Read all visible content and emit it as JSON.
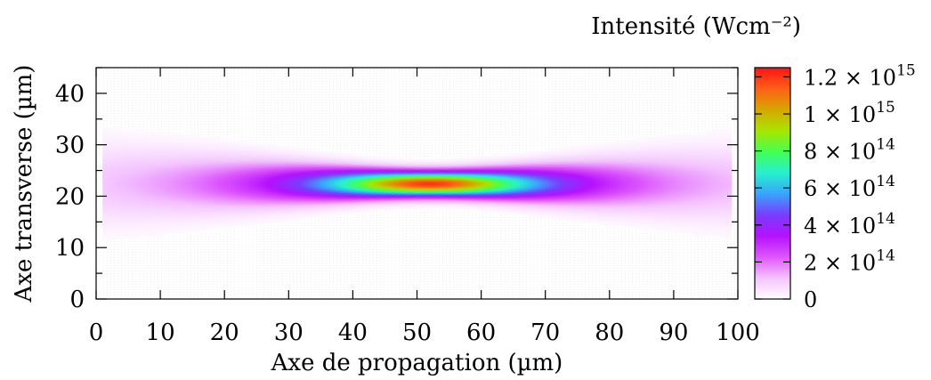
{
  "chart_data": {
    "type": "heatmap",
    "xlabel": "Axe de propagation (µm)",
    "ylabel": "Axe transverse (µm)",
    "colorbar_label": "Intensité (Wcm⁻²)",
    "xlim": [
      0,
      100
    ],
    "ylim": [
      0,
      45
    ],
    "xticks": [
      0,
      10,
      20,
      30,
      40,
      50,
      60,
      70,
      80,
      90,
      100
    ],
    "xtick_labels": [
      "0",
      "10",
      "20",
      "30",
      "40",
      "50",
      "60",
      "70",
      "80",
      "90",
      "100"
    ],
    "yticks": [
      0,
      10,
      20,
      30,
      40
    ],
    "ytick_labels": [
      "0",
      "10",
      "20",
      "30",
      "40"
    ],
    "colorbar": {
      "range": [
        0,
        1250000000000000.0
      ],
      "ticks": [
        0,
        200000000000000.0,
        400000000000000.0,
        600000000000000.0,
        800000000000000.0,
        1000000000000000.0,
        1200000000000000.0
      ],
      "tick_labels": [
        {
          "mantissa": "0",
          "exponent": ""
        },
        {
          "mantissa": "2 × 10",
          "exponent": "14"
        },
        {
          "mantissa": "4 × 10",
          "exponent": "14"
        },
        {
          "mantissa": "6 × 10",
          "exponent": "14"
        },
        {
          "mantissa": "8 × 10",
          "exponent": "14"
        },
        {
          "mantissa": "1 × 10",
          "exponent": "15"
        },
        {
          "mantissa": "1.2 × 10",
          "exponent": "15"
        }
      ],
      "colors": [
        "#ffffff",
        "#f4c3ff",
        "#dd55ff",
        "#b611ff",
        "#7a3cff",
        "#3aa4ff",
        "#27f0d0",
        "#43ff55",
        "#a7e600",
        "#d5a800",
        "#ff5f17",
        "#ff1414"
      ]
    },
    "field": {
      "x_range": [
        1,
        99
      ],
      "center_y": 22.5,
      "focus_x": 52,
      "waist_um": 3.2,
      "rayleigh_um": 16,
      "peak_intensity": 1200000000000000.0
    },
    "grid": true
  }
}
